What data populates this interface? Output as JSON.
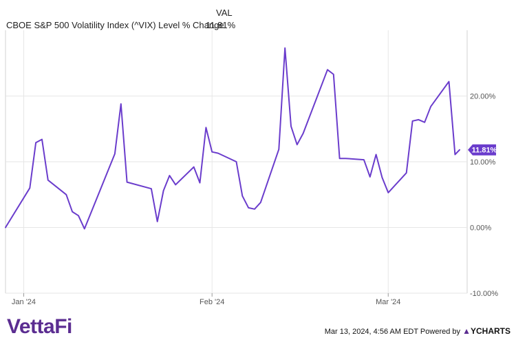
{
  "legend": {
    "header": "VAL",
    "series_label": "CBOE S&P 500 Volatility Index (^VIX) Level % Change",
    "series_value": "11.81%"
  },
  "colors": {
    "line": "#6a3ccc",
    "badge": "#6a3ccc",
    "grid": "#e6e6e6",
    "brand": "#5b2d91"
  },
  "brand": {
    "name": "VettaFi"
  },
  "footer": {
    "timestamp": "Mar 13, 2024, 4:56 AM EDT Powered by",
    "provider": "YCHARTS"
  },
  "chart_data": {
    "type": "line",
    "title": "",
    "xlabel": "",
    "ylabel": "",
    "x_range": [
      "2023-12-29",
      "2024-03-12"
    ],
    "ylim": [
      -10,
      30
    ],
    "y_ticks": [
      20,
      10,
      0,
      -10
    ],
    "y_tick_labels": [
      "20.00%",
      "10.00%",
      "0.00%",
      "-10.00%"
    ],
    "x_ticks": [
      "2024-01-01",
      "2024-02-01",
      "2024-03-01"
    ],
    "x_tick_labels": [
      "Jan '24",
      "Feb '24",
      "Mar '24"
    ],
    "grid": true,
    "last_value_label": "11.81%",
    "series": [
      {
        "name": "CBOE S&P 500 Volatility Index (^VIX) Level % Change",
        "points": [
          [
            "2023-12-29",
            0.0
          ],
          [
            "2024-01-02",
            6.0
          ],
          [
            "2024-01-03",
            12.9
          ],
          [
            "2024-01-04",
            13.4
          ],
          [
            "2024-01-05",
            7.2
          ],
          [
            "2024-01-08",
            5.0
          ],
          [
            "2024-01-09",
            2.4
          ],
          [
            "2024-01-10",
            1.8
          ],
          [
            "2024-01-11",
            -0.2
          ],
          [
            "2024-01-16",
            11.2
          ],
          [
            "2024-01-17",
            18.8
          ],
          [
            "2024-01-18",
            6.9
          ],
          [
            "2024-01-22",
            5.9
          ],
          [
            "2024-01-23",
            0.9
          ],
          [
            "2024-01-24",
            5.6
          ],
          [
            "2024-01-25",
            7.9
          ],
          [
            "2024-01-26",
            6.5
          ],
          [
            "2024-01-29",
            9.2
          ],
          [
            "2024-01-30",
            6.8
          ],
          [
            "2024-01-31",
            15.2
          ],
          [
            "2024-02-01",
            11.5
          ],
          [
            "2024-02-02",
            11.3
          ],
          [
            "2024-02-05",
            10.0
          ],
          [
            "2024-02-06",
            4.8
          ],
          [
            "2024-02-07",
            3.0
          ],
          [
            "2024-02-08",
            2.8
          ],
          [
            "2024-02-09",
            3.8
          ],
          [
            "2024-02-12",
            11.9
          ],
          [
            "2024-02-13",
            27.3
          ],
          [
            "2024-02-14",
            15.4
          ],
          [
            "2024-02-15",
            12.6
          ],
          [
            "2024-02-16",
            14.3
          ],
          [
            "2024-02-20",
            24.0
          ],
          [
            "2024-02-21",
            23.3
          ],
          [
            "2024-02-22",
            10.5
          ],
          [
            "2024-02-23",
            10.5
          ],
          [
            "2024-02-26",
            10.3
          ],
          [
            "2024-02-27",
            7.7
          ],
          [
            "2024-02-28",
            11.1
          ],
          [
            "2024-02-29",
            7.6
          ],
          [
            "2024-03-01",
            5.3
          ],
          [
            "2024-03-04",
            8.3
          ],
          [
            "2024-03-05",
            16.2
          ],
          [
            "2024-03-06",
            16.4
          ],
          [
            "2024-03-07",
            16.0
          ],
          [
            "2024-03-08",
            18.4
          ],
          [
            "2024-03-11",
            22.2
          ],
          [
            "2024-03-12",
            11.1
          ],
          [
            "2024-03-12T18:00",
            11.81
          ]
        ]
      }
    ]
  }
}
